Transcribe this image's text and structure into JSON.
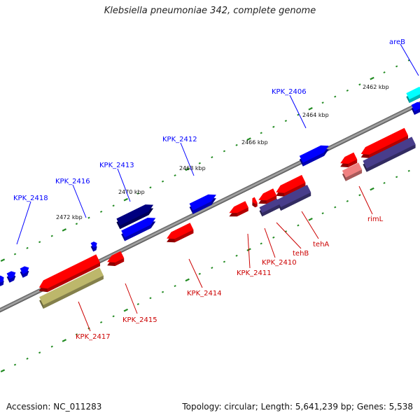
{
  "title": "Klebsiella pneumoniae 342, complete genome",
  "footer": {
    "accession": "Accession: NC_011283",
    "summary": "Topology: circular; Length: 5,641,239 bp; Genes: 5,538"
  },
  "colors": {
    "forward_gene": "#0000ff",
    "forward_gene_dark": "#000080",
    "reverse_gene": "#ff0000",
    "cds_slate": "#483d8b",
    "cds_khaki": "#bdb76b",
    "cds_cyan": "#00ffff",
    "pink": "#f08080",
    "backbone": "#808080",
    "tick": "#228b22"
  },
  "kbp_labels": [
    "2462 kbp",
    "2464 kbp",
    "2466 kbp",
    "2468 kbp",
    "2470 kbp",
    "2472 kbp"
  ],
  "forward_labels": [
    "areB",
    "KPK_2406",
    "KPK_2412",
    "KPK_2413",
    "KPK_2416",
    "KPK_2418"
  ],
  "reverse_labels": [
    "rimL",
    "tehA",
    "tehB",
    "KPK_2410",
    "KPK_2411",
    "KPK_2414",
    "KPK_2415",
    "KPK_2417"
  ]
}
